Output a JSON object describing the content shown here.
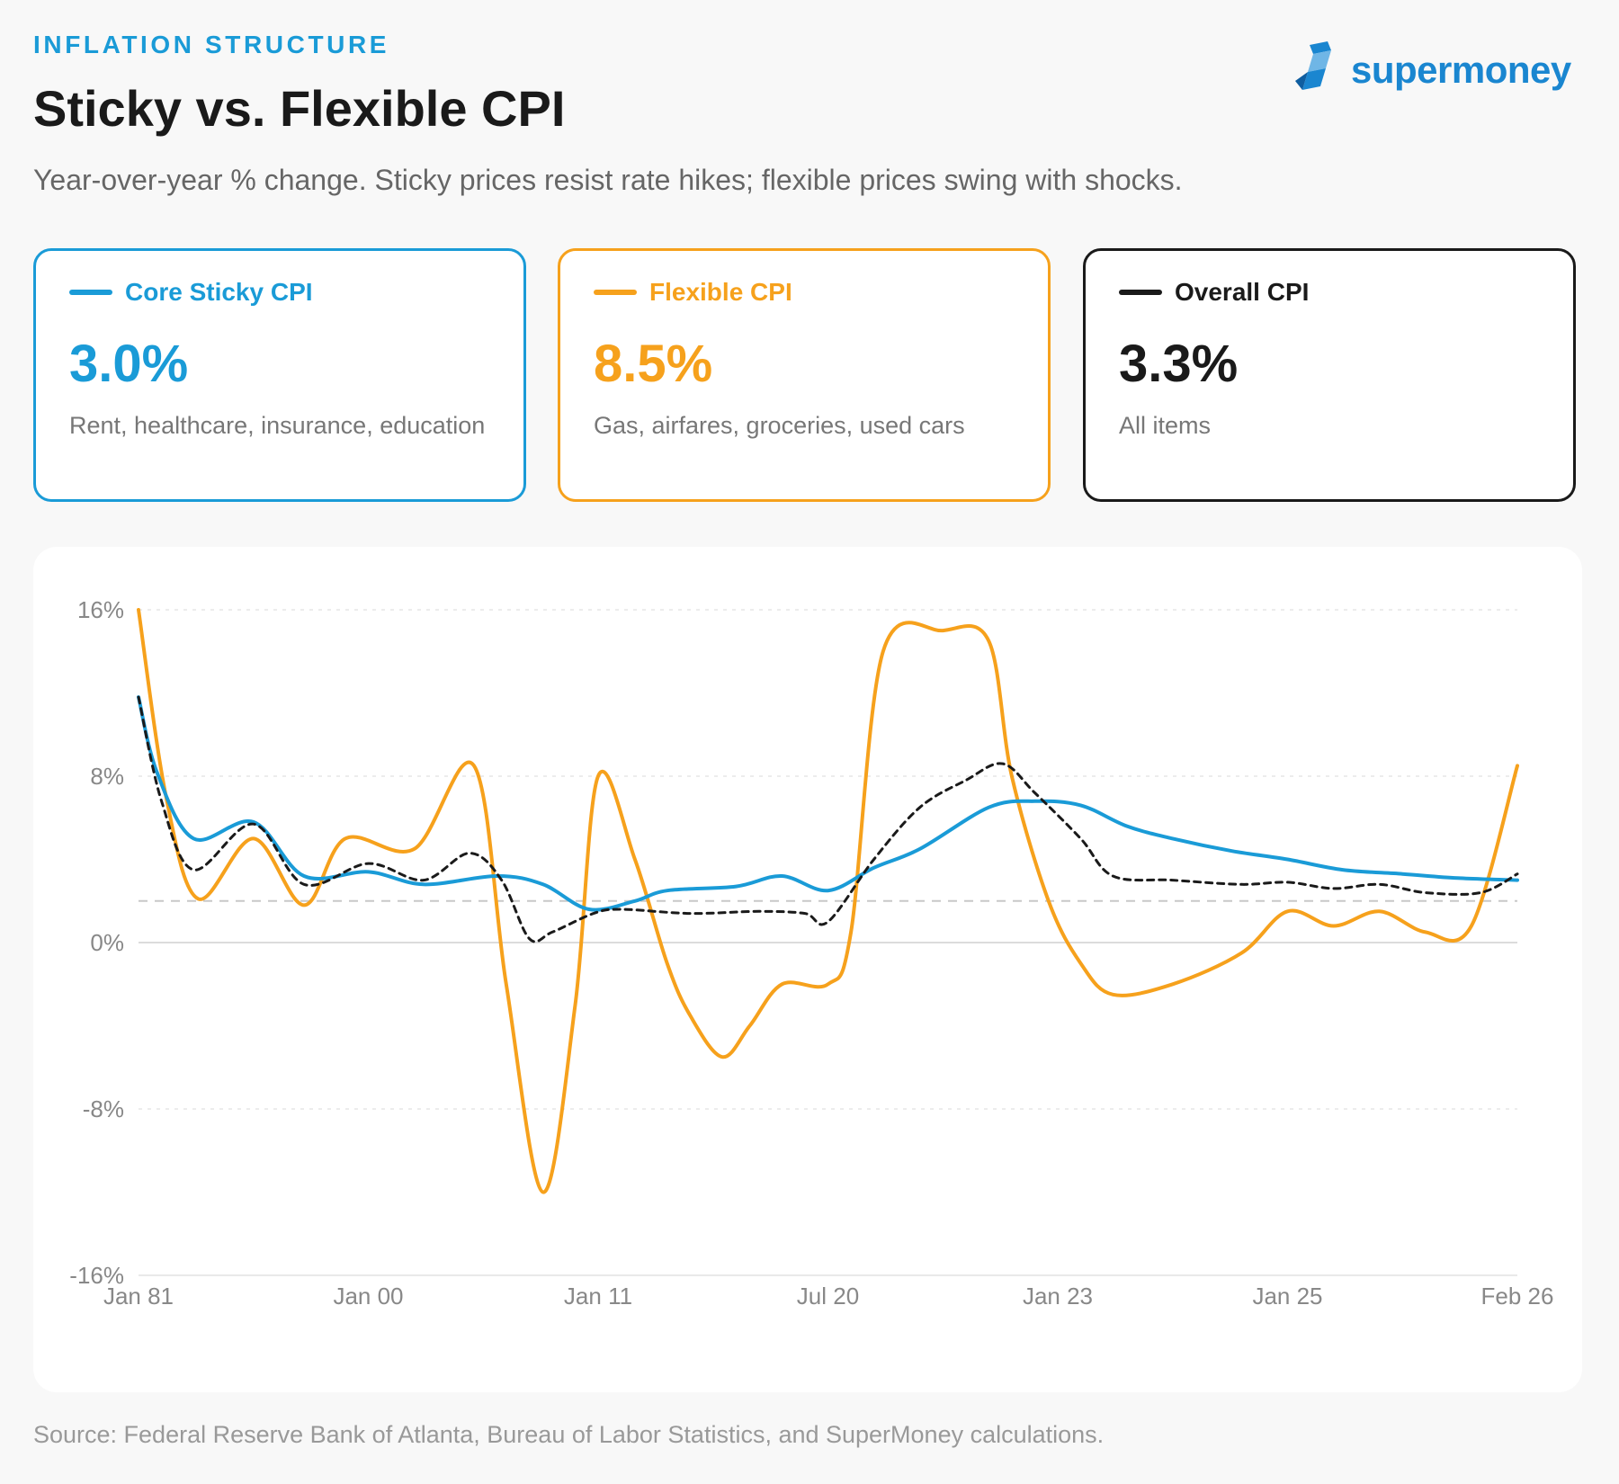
{
  "header": {
    "eyebrow": "INFLATION STRUCTURE",
    "title": "Sticky vs. Flexible CPI",
    "subtitle": "Year-over-year % change. Sticky prices resist rate hikes; flexible prices swing with shocks."
  },
  "logo": {
    "text": "supermoney",
    "icon": "supermoney-logo-icon"
  },
  "cards": [
    {
      "key": "sticky",
      "label": "Core Sticky CPI",
      "value": "3.0%",
      "desc": "Rent, healthcare, insurance, education",
      "color": "#1a9bd7"
    },
    {
      "key": "flex",
      "label": "Flexible CPI",
      "value": "8.5%",
      "desc": "Gas, airfares, groceries, used cars",
      "color": "#f6a11c"
    },
    {
      "key": "overall",
      "label": "Overall CPI",
      "value": "3.3%",
      "desc": "All items",
      "color": "#1a1a1a"
    }
  ],
  "chart_data": {
    "type": "line",
    "x": [
      "Jan 81",
      "",
      "",
      "",
      "",
      "Jan 00",
      "",
      "",
      "",
      "",
      "Jan 11",
      "",
      "",
      "",
      "",
      "Jul 20",
      "",
      "",
      "",
      "",
      "Jan 23",
      "",
      "",
      "",
      "",
      "Jan 25",
      "",
      "",
      "",
      "",
      "Feb 26"
    ],
    "x_tick_labels": [
      "Jan 81",
      "Jan 00",
      "Jan 11",
      "Jul 20",
      "Jan 23",
      "Jan 25",
      "Feb 26"
    ],
    "y_tick_labels": [
      "16%",
      "8%",
      "0%",
      "-8%",
      "-16%"
    ],
    "y_ticks": [
      16,
      8,
      0,
      -8,
      -16
    ],
    "ylim": [
      -16,
      16
    ],
    "reference_line": 2,
    "grid": true,
    "series": [
      {
        "name": "Core Sticky CPI",
        "color": "#1a9bd7",
        "dash": "solid",
        "points": [
          [
            0,
            11.8
          ],
          [
            0.4,
            8.2
          ],
          [
            1.2,
            5.0
          ],
          [
            2.5,
            5.8
          ],
          [
            3.6,
            3.2
          ],
          [
            5,
            3.4
          ],
          [
            6.2,
            2.8
          ],
          [
            7.8,
            3.2
          ],
          [
            8.8,
            2.8
          ],
          [
            9.8,
            1.6
          ],
          [
            10.8,
            2.0
          ],
          [
            11.5,
            2.5
          ],
          [
            13,
            2.7
          ],
          [
            14,
            3.2
          ],
          [
            15,
            2.5
          ],
          [
            16,
            3.6
          ],
          [
            17,
            4.5
          ],
          [
            18.5,
            6.5
          ],
          [
            19.5,
            6.8
          ],
          [
            20.5,
            6.6
          ],
          [
            21.5,
            5.6
          ],
          [
            22.5,
            5.0
          ],
          [
            23.8,
            4.4
          ],
          [
            25,
            4.0
          ],
          [
            26.2,
            3.5
          ],
          [
            27.5,
            3.3
          ],
          [
            28.7,
            3.1
          ],
          [
            30,
            3.0
          ]
        ]
      },
      {
        "name": "Flexible CPI",
        "color": "#f6a11c",
        "dash": "solid",
        "points": [
          [
            0,
            16
          ],
          [
            0.6,
            7.0
          ],
          [
            1.3,
            2.1
          ],
          [
            2.5,
            5.0
          ],
          [
            3.6,
            1.8
          ],
          [
            4.5,
            5.0
          ],
          [
            6,
            4.5
          ],
          [
            7.3,
            8.5
          ],
          [
            8.0,
            -2.0
          ],
          [
            8.8,
            -12.0
          ],
          [
            9.5,
            -3.0
          ],
          [
            10,
            8.0
          ],
          [
            10.8,
            4.0
          ],
          [
            11.5,
            -1.0
          ],
          [
            12,
            -3.5
          ],
          [
            12.7,
            -5.5
          ],
          [
            13.3,
            -4.0
          ],
          [
            14,
            -2.0
          ],
          [
            15,
            -2.0
          ],
          [
            15.5,
            0.5
          ],
          [
            16.2,
            14.0
          ],
          [
            17.5,
            15.0
          ],
          [
            18.5,
            14.5
          ],
          [
            19,
            8.0
          ],
          [
            19.8,
            2.0
          ],
          [
            20.5,
            -1.0
          ],
          [
            21.2,
            -2.5
          ],
          [
            22.5,
            -2.0
          ],
          [
            24,
            -0.5
          ],
          [
            25,
            1.5
          ],
          [
            26,
            0.8
          ],
          [
            27,
            1.5
          ],
          [
            28,
            0.5
          ],
          [
            29,
            0.8
          ],
          [
            30,
            8.5
          ]
        ]
      },
      {
        "name": "Overall CPI",
        "color": "#1a1a1a",
        "dash": "dashed",
        "points": [
          [
            0,
            11.8
          ],
          [
            0.5,
            6.8
          ],
          [
            1.2,
            3.5
          ],
          [
            2.5,
            5.7
          ],
          [
            3.6,
            2.8
          ],
          [
            5,
            3.8
          ],
          [
            6.2,
            3.0
          ],
          [
            7.2,
            4.3
          ],
          [
            7.9,
            3.0
          ],
          [
            8.5,
            0.2
          ],
          [
            9,
            0.5
          ],
          [
            9.9,
            1.4
          ],
          [
            10.5,
            1.6
          ],
          [
            12,
            1.4
          ],
          [
            13.5,
            1.5
          ],
          [
            14.5,
            1.4
          ],
          [
            15,
            1.0
          ],
          [
            16,
            4.0
          ],
          [
            17,
            6.5
          ],
          [
            18,
            7.8
          ],
          [
            18.8,
            8.6
          ],
          [
            19.5,
            7.2
          ],
          [
            20.5,
            5.0
          ],
          [
            21.2,
            3.2
          ],
          [
            22.5,
            3.0
          ],
          [
            24,
            2.8
          ],
          [
            25,
            2.9
          ],
          [
            26,
            2.6
          ],
          [
            27,
            2.8
          ],
          [
            28,
            2.4
          ],
          [
            29.2,
            2.4
          ],
          [
            30,
            3.3
          ]
        ]
      }
    ]
  },
  "source": "Source: Federal Reserve Bank of Atlanta, Bureau of Labor Statistics, and SuperMoney calculations."
}
